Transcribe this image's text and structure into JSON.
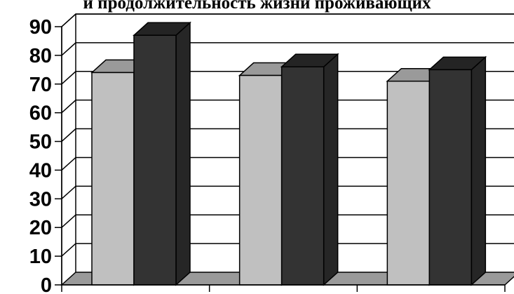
{
  "chart_data": {
    "type": "bar",
    "title": "и продолжительность жизни проживающих",
    "categories": [
      "",
      "",
      ""
    ],
    "series": [
      {
        "values": [
          74,
          73,
          71
        ],
        "color": "#c0c0c0"
      },
      {
        "values": [
          87,
          76,
          75
        ],
        "color": "#333333"
      }
    ],
    "ylim": [
      0,
      90
    ],
    "yticks": [
      0,
      10,
      20,
      30,
      40,
      50,
      60,
      70,
      80,
      90
    ],
    "grid": true,
    "three_d": true,
    "legend": "none",
    "xlabel": "",
    "ylabel": ""
  }
}
